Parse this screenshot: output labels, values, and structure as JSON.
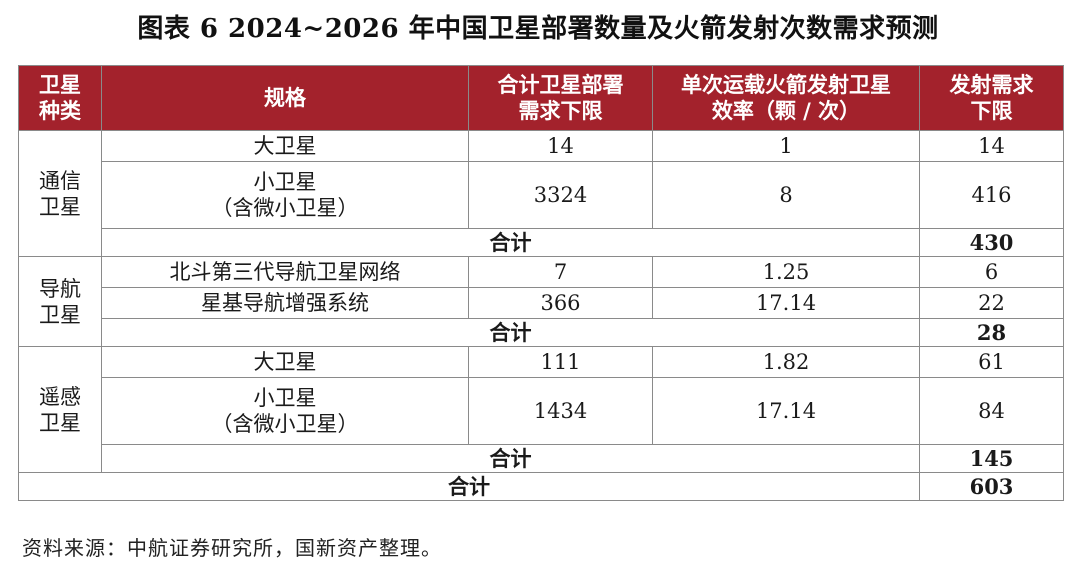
{
  "title": "图表 6  2024~2026 年中国卫星部署数量及火箭发射次数需求预测",
  "header": {
    "type": "卫星种类",
    "spec": "规格",
    "sat_demand": "合计卫星部署需求下限",
    "efficiency": "单次运载火箭发射卫星效率（颗 / 次）",
    "launch_demand": "发射需求下限"
  },
  "groups": [
    {
      "type": "通信卫星",
      "rows": [
        {
          "spec": "大卫星",
          "spec2": "",
          "sats": "14",
          "eff": "1",
          "launch": "14"
        },
        {
          "spec": "小卫星",
          "spec2": "（含微小卫星）",
          "sats": "3324",
          "eff": "8",
          "launch": "416"
        }
      ],
      "subtotal_label": "合计",
      "subtotal": "430"
    },
    {
      "type": "导航卫星",
      "rows": [
        {
          "spec": "北斗第三代导航卫星网络",
          "spec2": "",
          "sats": "7",
          "eff": "1.25",
          "launch": "6"
        },
        {
          "spec": "星基导航增强系统",
          "spec2": "",
          "sats": "366",
          "eff": "17.14",
          "launch": "22"
        }
      ],
      "subtotal_label": "合计",
      "subtotal": "28"
    },
    {
      "type": "遥感卫星",
      "rows": [
        {
          "spec": "大卫星",
          "spec2": "",
          "sats": "111",
          "eff": "1.82",
          "launch": "61"
        },
        {
          "spec": "小卫星",
          "spec2": "（含微小卫星）",
          "sats": "1434",
          "eff": "17.14",
          "launch": "84"
        }
      ],
      "subtotal_label": "合计",
      "subtotal": "145"
    }
  ],
  "grand_total_label": "合计",
  "grand_total": "603",
  "source": "资料来源：中航证券研究所，国新资产整理。"
}
